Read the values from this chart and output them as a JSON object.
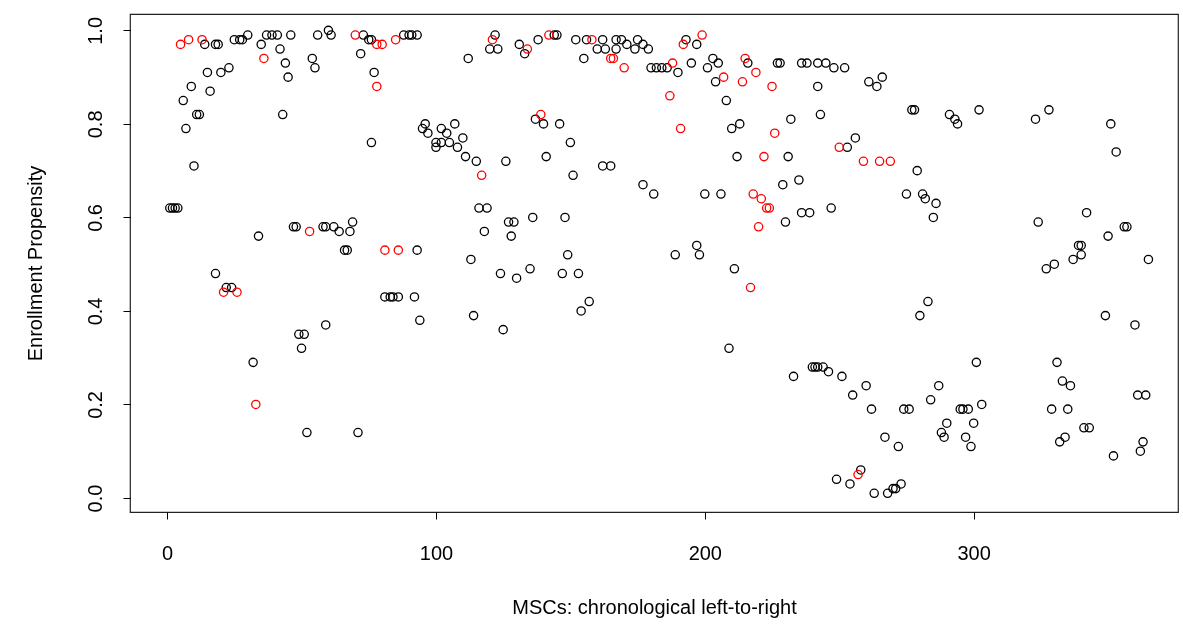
{
  "chart_data": {
    "type": "scatter",
    "xlabel": "MSCs: chronological left-to-right",
    "ylabel": "Enrollment Propensity",
    "marker": "circle",
    "xlim": [
      -13.8,
      376
    ],
    "xticks": [
      0,
      100,
      200,
      300
    ],
    "ylim": [
      -0.03,
      1.035
    ],
    "yticks": [
      {
        "value": 0,
        "label": "0.0"
      },
      0.2,
      0.4,
      0.6,
      0.8,
      {
        "value": 1,
        "label": "1.0"
      }
    ],
    "series": [
      {
        "color": "#000000",
        "x": [
          14,
          18,
          19,
          25,
          27,
          28,
          30,
          35,
          37,
          39,
          41,
          46,
          42,
          44,
          45,
          43,
          56,
          60,
          61,
          54,
          55,
          73,
          75,
          76,
          72,
          77,
          76,
          88,
          90,
          91,
          93,
          112,
          15,
          20,
          23,
          9,
          16,
          6,
          11,
          12,
          7,
          10,
          1,
          2,
          3,
          4,
          47,
          48,
          58,
          59,
          62,
          64,
          69,
          68,
          34,
          66,
          67,
          93,
          113,
          96,
          95,
          97,
          102,
          104,
          107,
          100,
          102,
          105,
          110,
          108,
          100,
          111,
          115,
          122,
          120,
          123,
          131,
          133,
          138,
          144,
          145,
          152,
          156,
          155,
          160,
          163,
          162,
          167,
          169,
          167,
          171,
          174,
          175,
          177,
          179,
          180,
          182,
          184,
          186,
          190,
          195,
          193,
          197,
          201,
          203,
          205,
          204,
          208,
          216,
          227,
          228,
          236,
          238,
          242,
          242,
          243,
          232,
          210,
          213,
          212,
          231,
          235,
          229,
          236,
          239,
          230,
          200,
          206,
          177,
          181,
          137,
          140,
          146,
          150,
          141,
          126,
          151,
          162,
          165,
          116,
          119,
          118,
          127,
          129,
          136,
          148,
          128,
          149,
          189,
          197,
          198,
          211,
          245,
          248,
          252,
          261,
          264,
          266,
          277,
          278,
          291,
          293,
          294,
          302,
          323,
          328,
          351,
          353,
          256,
          253,
          279,
          275,
          281,
          282,
          286,
          285,
          247,
          324,
          342,
          350,
          356,
          357,
          339,
          340,
          337,
          340,
          330,
          327,
          365,
          18,
          22,
          24,
          32,
          49,
          51,
          50,
          59,
          52,
          71,
          81,
          83,
          84,
          86,
          92,
          94,
          114,
          124,
          130,
          135,
          147,
          153,
          157,
          154,
          125,
          209,
          233,
          240,
          241,
          242,
          244,
          246,
          251,
          255,
          260,
          262,
          267,
          272,
          249,
          254,
          258,
          263,
          268,
          270,
          271,
          273,
          274,
          276,
          283,
          280,
          287,
          284,
          290,
          288,
          289,
          295,
          296,
          298,
          303,
          300,
          297,
          299,
          301,
          331,
          333,
          336,
          329,
          335,
          332,
          334,
          341,
          343,
          349,
          360,
          361,
          364,
          352,
          362,
          363
        ],
        "values": [
          0.97,
          0.97,
          0.97,
          0.98,
          0.98,
          0.98,
          0.99,
          0.97,
          0.99,
          0.99,
          0.99,
          0.99,
          0.96,
          0.93,
          0.9,
          0.82,
          0.99,
          1.0,
          0.99,
          0.94,
          0.92,
          0.99,
          0.98,
          0.98,
          0.95,
          0.91,
          0.76,
          0.99,
          0.99,
          0.99,
          0.99,
          0.94,
          0.91,
          0.91,
          0.92,
          0.88,
          0.87,
          0.85,
          0.82,
          0.82,
          0.79,
          0.71,
          0.62,
          0.62,
          0.62,
          0.62,
          0.58,
          0.58,
          0.58,
          0.58,
          0.58,
          0.57,
          0.59,
          0.57,
          0.56,
          0.53,
          0.53,
          0.53,
          0.51,
          0.8,
          0.79,
          0.78,
          0.79,
          0.78,
          0.8,
          0.76,
          0.76,
          0.76,
          0.77,
          0.75,
          0.75,
          0.73,
          0.72,
          0.99,
          0.96,
          0.96,
          0.97,
          0.95,
          0.98,
          0.99,
          0.99,
          0.98,
          0.98,
          0.94,
          0.96,
          0.96,
          0.98,
          0.98,
          0.98,
          0.96,
          0.97,
          0.96,
          0.98,
          0.97,
          0.96,
          0.92,
          0.92,
          0.92,
          0.92,
          0.91,
          0.93,
          0.98,
          0.97,
          0.92,
          0.94,
          0.93,
          0.89,
          0.85,
          0.93,
          0.93,
          0.93,
          0.93,
          0.93,
          0.93,
          0.88,
          0.82,
          0.81,
          0.79,
          0.8,
          0.73,
          0.73,
          0.68,
          0.67,
          0.61,
          0.61,
          0.59,
          0.65,
          0.65,
          0.67,
          0.65,
          0.81,
          0.8,
          0.8,
          0.76,
          0.73,
          0.72,
          0.69,
          0.71,
          0.71,
          0.62,
          0.62,
          0.57,
          0.59,
          0.59,
          0.6,
          0.6,
          0.56,
          0.52,
          0.52,
          0.54,
          0.52,
          0.49,
          0.93,
          0.92,
          0.92,
          0.89,
          0.88,
          0.9,
          0.83,
          0.83,
          0.82,
          0.81,
          0.8,
          0.83,
          0.81,
          0.83,
          0.8,
          0.74,
          0.77,
          0.75,
          0.7,
          0.65,
          0.65,
          0.64,
          0.63,
          0.6,
          0.62,
          0.59,
          0.61,
          0.56,
          0.58,
          0.58,
          0.54,
          0.54,
          0.51,
          0.52,
          0.5,
          0.49,
          0.51,
          0.48,
          0.45,
          0.45,
          0.29,
          0.35,
          0.35,
          0.32,
          0.37,
          0.14,
          0.14,
          0.43,
          0.43,
          0.43,
          0.43,
          0.43,
          0.38,
          0.39,
          0.48,
          0.47,
          0.49,
          0.48,
          0.48,
          0.42,
          0.4,
          0.36,
          0.32,
          0.26,
          0.28,
          0.28,
          0.28,
          0.28,
          0.27,
          0.26,
          0.22,
          0.24,
          0.19,
          0.13,
          0.11,
          0.04,
          0.03,
          0.06,
          0.01,
          0.01,
          0.02,
          0.02,
          0.03,
          0.19,
          0.19,
          0.42,
          0.39,
          0.24,
          0.21,
          0.16,
          0.14,
          0.13,
          0.19,
          0.19,
          0.19,
          0.2,
          0.16,
          0.13,
          0.11,
          0.29,
          0.29,
          0.25,
          0.24,
          0.19,
          0.19,
          0.12,
          0.13,
          0.15,
          0.15,
          0.39,
          0.37,
          0.22,
          0.22,
          0.09,
          0.1,
          0.12
        ]
      },
      {
        "color": "#ff0000",
        "x": [
          5,
          8,
          13,
          21,
          26,
          33,
          36,
          53,
          70,
          78,
          78,
          80,
          81,
          85,
          86,
          117,
          121,
          134,
          139,
          142,
          158,
          165,
          166,
          170,
          187,
          188,
          191,
          192,
          199,
          207,
          214,
          215,
          217,
          218,
          219,
          220,
          221,
          222,
          223,
          224,
          225,
          226,
          250,
          257,
          259,
          265,
          269
        ],
        "values": [
          0.97,
          0.98,
          0.98,
          0.44,
          0.44,
          0.2,
          0.94,
          0.57,
          0.99,
          0.97,
          0.88,
          0.97,
          0.53,
          0.98,
          0.53,
          0.69,
          0.98,
          0.96,
          0.82,
          0.99,
          0.98,
          0.94,
          0.94,
          0.92,
          0.86,
          0.93,
          0.79,
          0.97,
          0.99,
          0.9,
          0.89,
          0.94,
          0.45,
          0.65,
          0.91,
          0.58,
          0.64,
          0.73,
          0.62,
          0.62,
          0.88,
          0.78,
          0.75,
          0.05,
          0.72,
          0.72,
          0.72
        ]
      }
    ]
  }
}
